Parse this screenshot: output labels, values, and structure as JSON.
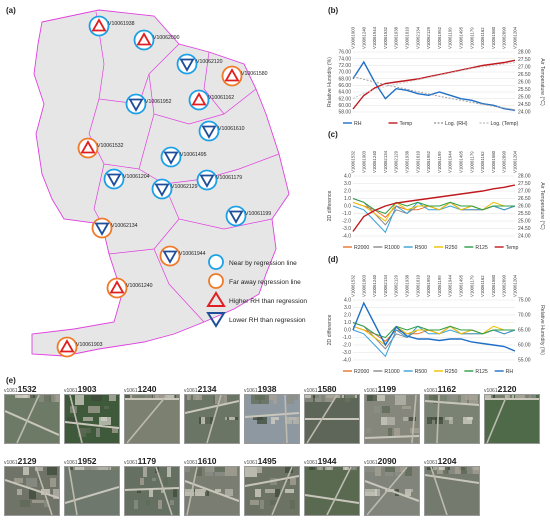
{
  "panels": {
    "a": "(a)",
    "b": "(b)",
    "c": "(c)",
    "d": "(d)",
    "e": "(e)"
  },
  "map": {
    "stations": [
      {
        "id": "V1061938",
        "label": "V10061938",
        "type": "near",
        "dir": "higher"
      },
      {
        "id": "V1062090",
        "label": "V10062090",
        "type": "near",
        "dir": "higher"
      },
      {
        "id": "V1062120",
        "label": "V10062120",
        "type": "near",
        "dir": "lower"
      },
      {
        "id": "V1061580",
        "label": "V10061580",
        "type": "far",
        "dir": "higher"
      },
      {
        "id": "V1061952",
        "label": "V10061952",
        "type": "near",
        "dir": "lower"
      },
      {
        "id": "V1061162",
        "label": "V10061162",
        "type": "near",
        "dir": "higher"
      },
      {
        "id": "V1061610",
        "label": "V10061610",
        "type": "near",
        "dir": "lower"
      },
      {
        "id": "V1061532",
        "label": "V10061532",
        "type": "far",
        "dir": "higher"
      },
      {
        "id": "V1061495",
        "label": "V10061495",
        "type": "near",
        "dir": "lower"
      },
      {
        "id": "V1061204",
        "label": "V10061204",
        "type": "near",
        "dir": "lower"
      },
      {
        "id": "V1062129",
        "label": "V10062129",
        "type": "near",
        "dir": "lower"
      },
      {
        "id": "V1061179",
        "label": "V10061179",
        "type": "near",
        "dir": "lower"
      },
      {
        "id": "V1062134",
        "label": "V10062134",
        "type": "far",
        "dir": "lower"
      },
      {
        "id": "V1061199",
        "label": "V10061199",
        "type": "near",
        "dir": "lower"
      },
      {
        "id": "V1061944",
        "label": "V10061944",
        "type": "far",
        "dir": "lower"
      },
      {
        "id": "V1061240",
        "label": "V10061240",
        "type": "far",
        "dir": "higher"
      },
      {
        "id": "V1061903",
        "label": "V10061903",
        "type": "far",
        "dir": "higher"
      }
    ],
    "legend": {
      "near": "Near by regression line",
      "far": "Far away regression line",
      "higher": "Higher RH than regression",
      "lower": "Lower RH than regression"
    },
    "colors": {
      "boundary": "#e040e0",
      "near": "#1ea0e6",
      "far": "#ef7a2a",
      "higher": "#e02020",
      "lower": "#1f4f9a",
      "fill": "#e6e6e6"
    }
  },
  "chart_data": [
    {
      "type": "line",
      "panel": "b",
      "categories": [
        "V10061903",
        "V10061240",
        "V10061944",
        "V10061532",
        "V10061938",
        "V10061610",
        "V10062134",
        "V10062129",
        "V10061952",
        "V10061199",
        "V10061495",
        "V10061179",
        "V10061162",
        "V10061580",
        "V10062090",
        "V10061204"
      ],
      "series": [
        {
          "name": "RH",
          "axis": "left",
          "color": "#1f6fc7",
          "values": [
            68.0,
            73.0,
            67.0,
            62.0,
            65.0,
            64.5,
            63.5,
            63.0,
            64.0,
            63.0,
            62.0,
            61.5,
            60.5,
            60.0,
            59.0,
            58.5
          ]
        },
        {
          "name": "Temp",
          "axis": "right",
          "color": "#c0191f",
          "values": [
            24.2,
            25.1,
            25.6,
            25.9,
            26.0,
            26.1,
            26.2,
            26.35,
            26.5,
            26.65,
            26.8,
            26.95,
            27.1,
            27.2,
            27.3,
            27.45
          ]
        },
        {
          "name": "Log. (RH)",
          "axis": "left",
          "color": "#a0a0a0",
          "values": [
            68.6,
            67.8,
            67.0,
            66.2,
            65.5,
            64.8,
            64.1,
            63.4,
            62.7,
            62.1,
            61.5,
            60.9,
            60.3,
            59.7,
            59.2,
            58.7
          ]
        },
        {
          "name": "Log. (Temp)",
          "axis": "right",
          "color": "#c8c8c8",
          "values": [
            24.9,
            25.25,
            25.5,
            25.7,
            25.85,
            26.0,
            26.15,
            26.3,
            26.45,
            26.6,
            26.75,
            26.9,
            27.0,
            27.1,
            27.2,
            27.3
          ]
        }
      ],
      "ylabel": "Relative Humidity (%)",
      "y2label": "Air Temperature (°C)",
      "ylim": [
        58.0,
        76.0
      ],
      "y2lim": [
        24.0,
        28.0
      ],
      "yticks": [
        "76.00",
        "74.00",
        "72.00",
        "70.00",
        "68.00",
        "66.00",
        "64.00",
        "62.00",
        "60.00",
        "58.00"
      ],
      "y2ticks": [
        "28.00",
        "27.50",
        "27.00",
        "26.50",
        "26.00",
        "25.50",
        "25.00",
        "24.50",
        "24.00"
      ],
      "legend_position": "bottom"
    },
    {
      "type": "line",
      "panel": "c",
      "categories": [
        "V10061532",
        "V10061903",
        "V10061240",
        "V10062134",
        "V10062129",
        "V10061938",
        "V10061610",
        "V10061952",
        "V10061199",
        "V10061944",
        "V10061495",
        "V10061179",
        "V10061162",
        "V10061580",
        "V10062090",
        "V10061204"
      ],
      "series": [
        {
          "name": "R2000",
          "axis": "left",
          "color": "#e8732a",
          "values": [
            0.5,
            0.0,
            -0.5,
            -1.5,
            0.0,
            -0.5,
            -0.5,
            0.0,
            -0.5,
            0.5,
            -0.5,
            -0.5,
            -0.5,
            0.0,
            -0.5,
            0.0
          ]
        },
        {
          "name": "R1000",
          "axis": "left",
          "color": "#8a8a8a",
          "values": [
            1.0,
            0.5,
            -1.0,
            -2.5,
            -0.5,
            -1.0,
            0.0,
            0.0,
            -0.5,
            0.5,
            -0.5,
            0.0,
            -0.5,
            0.0,
            -0.5,
            0.0
          ]
        },
        {
          "name": "R500",
          "axis": "left",
          "color": "#38a0d8",
          "values": [
            0.0,
            -0.5,
            -2.0,
            -3.5,
            0.0,
            -1.0,
            0.5,
            -0.5,
            -0.5,
            0.0,
            -0.5,
            -0.5,
            -0.5,
            0.0,
            -0.5,
            0.0
          ]
        },
        {
          "name": "R250",
          "axis": "left",
          "color": "#f0c000",
          "values": [
            0.5,
            0.0,
            -1.0,
            -2.0,
            0.5,
            -0.5,
            0.0,
            0.0,
            -0.5,
            0.5,
            -0.5,
            0.0,
            -0.5,
            0.5,
            0.0,
            0.0
          ]
        },
        {
          "name": "R125",
          "axis": "left",
          "color": "#2e9e44",
          "values": [
            1.0,
            0.5,
            -0.5,
            -1.0,
            0.5,
            0.0,
            0.5,
            0.0,
            0.0,
            0.5,
            0.0,
            0.0,
            -0.5,
            0.0,
            0.0,
            0.0
          ]
        },
        {
          "name": "Temp",
          "axis": "right",
          "color": "#c0191f",
          "values": [
            24.3,
            25.3,
            25.7,
            26.0,
            26.2,
            26.3,
            26.4,
            26.5,
            26.6,
            26.7,
            26.8,
            26.9,
            27.0,
            27.15,
            27.25,
            27.4
          ]
        }
      ],
      "ylabel": "2D difference",
      "y2label": "Air Temperature (°C)",
      "ylim": [
        -4.0,
        4.0
      ],
      "y2lim": [
        24.0,
        28.0
      ],
      "yticks": [
        "4.0",
        "3.0",
        "2.0",
        "1.0",
        "0.0",
        "-1.0",
        "-2.0",
        "-3.0",
        "-4.0"
      ],
      "y2ticks": [
        "28.00",
        "27.50",
        "27.00",
        "26.50",
        "26.00",
        "25.50",
        "25.00",
        "24.50",
        "24.00"
      ],
      "legend_position": "bottom"
    },
    {
      "type": "line",
      "panel": "d",
      "categories": [
        "V10061532",
        "V10061903",
        "V10061240",
        "V10062134",
        "V10062129",
        "V10061938",
        "V10061610",
        "V10061952",
        "V10061199",
        "V10061944",
        "V10061495",
        "V10061179",
        "V10061162",
        "V10061580",
        "V10062090",
        "V10061204"
      ],
      "series": [
        {
          "name": "R2000",
          "axis": "left",
          "color": "#e8732a",
          "values": [
            0.5,
            0.0,
            -0.5,
            -1.5,
            0.0,
            -0.5,
            -0.5,
            0.0,
            -0.5,
            0.5,
            -0.5,
            -0.5,
            -0.5,
            0.0,
            -0.5,
            0.0
          ]
        },
        {
          "name": "R1000",
          "axis": "left",
          "color": "#8a8a8a",
          "values": [
            1.0,
            0.5,
            -1.0,
            -2.5,
            -0.5,
            -1.0,
            0.0,
            0.0,
            -0.5,
            0.5,
            -0.5,
            0.0,
            -0.5,
            0.0,
            -0.5,
            0.0
          ]
        },
        {
          "name": "R500",
          "axis": "left",
          "color": "#38a0d8",
          "values": [
            0.0,
            -0.5,
            -2.0,
            -3.5,
            0.0,
            -1.0,
            0.5,
            -0.5,
            -0.5,
            0.0,
            -0.5,
            -0.5,
            -0.5,
            0.0,
            -0.5,
            0.0
          ]
        },
        {
          "name": "R250",
          "axis": "left",
          "color": "#f0c000",
          "values": [
            0.5,
            0.0,
            -1.0,
            -2.0,
            0.5,
            -0.5,
            0.0,
            0.0,
            -0.5,
            0.5,
            -0.5,
            0.0,
            -0.5,
            0.5,
            0.0,
            0.0
          ]
        },
        {
          "name": "R125",
          "axis": "left",
          "color": "#2e9e44",
          "values": [
            1.0,
            0.5,
            -0.5,
            -1.0,
            0.5,
            0.0,
            0.5,
            0.0,
            0.0,
            0.5,
            0.0,
            0.0,
            -0.5,
            0.0,
            0.0,
            0.0
          ]
        },
        {
          "name": "RH",
          "axis": "right",
          "color": "#1f6fc7",
          "values": [
            65.0,
            74.0,
            67.0,
            60.0,
            66.0,
            63.0,
            62.0,
            62.0,
            61.5,
            62.0,
            62.0,
            61.0,
            60.5,
            60.0,
            59.5,
            58.0
          ]
        }
      ],
      "ylabel": "2D difference",
      "y2label": "Relative Humidity (%)",
      "ylim": [
        -4.0,
        4.0
      ],
      "y2lim": [
        55.0,
        75.0
      ],
      "yticks": [
        "4.0",
        "3.0",
        "2.0",
        "1.0",
        "0.0",
        "-1.0",
        "-2.0",
        "-3.0",
        "-4.0"
      ],
      "y2ticks": [
        "75.00",
        "70.00",
        "65.00",
        "60.00",
        "55.00"
      ],
      "legend_position": "bottom"
    }
  ],
  "thumbnails": [
    {
      "prefix": "v1061",
      "num": "1532",
      "tone": "#6d7a66"
    },
    {
      "prefix": "v1061",
      "num": "1903",
      "tone": "#3f5a3a"
    },
    {
      "prefix": "v1061",
      "num": "1240",
      "tone": "#7c8070"
    },
    {
      "prefix": "v1061",
      "num": "2134",
      "tone": "#6a7566"
    },
    {
      "prefix": "v1061",
      "num": "1938",
      "tone": "#8e98a0"
    },
    {
      "prefix": "v1061",
      "num": "1580",
      "tone": "#5d6658"
    },
    {
      "prefix": "v1061",
      "num": "1199",
      "tone": "#85877c"
    },
    {
      "prefix": "v1061",
      "num": "1162",
      "tone": "#7a8274"
    },
    {
      "prefix": "v1061",
      "num": "2120",
      "tone": "#4e6a48"
    },
    {
      "prefix": "v1061",
      "num": "2129",
      "tone": "#707468"
    },
    {
      "prefix": "v1061",
      "num": "1952",
      "tone": "#6f786c"
    },
    {
      "prefix": "v1061",
      "num": "1179",
      "tone": "#667062"
    },
    {
      "prefix": "v1061",
      "num": "1610",
      "tone": "#7a7d72"
    },
    {
      "prefix": "v1061",
      "num": "1495",
      "tone": "#6c7364"
    },
    {
      "prefix": "v1061",
      "num": "1944",
      "tone": "#5a6a50"
    },
    {
      "prefix": "v1061",
      "num": "2090",
      "tone": "#80847a"
    },
    {
      "prefix": "v1061",
      "num": "1204",
      "tone": "#747a6e"
    }
  ]
}
